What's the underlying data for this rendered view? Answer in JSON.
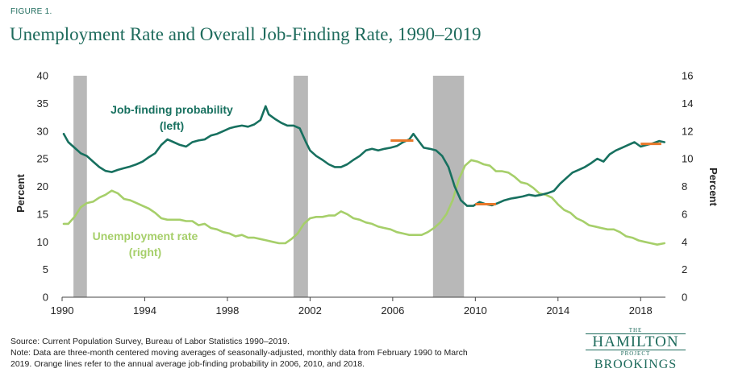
{
  "figure": {
    "label": "FIGURE 1.",
    "title": "Unemployment Rate and Overall Job-Finding Rate, 1990–2019"
  },
  "footer": {
    "source": "Source: Current Population Survey, Bureau of Labor Statistics 1990–2019.",
    "note_line1": "Note: Data are three-month centered moving averages of seasonally-adjusted, monthly data from February 1990 to March",
    "note_line2": "2019. Orange lines refer to the annual average job-finding probability in 2006, 2010, and 2018."
  },
  "logo": {
    "the": "THE",
    "hamilton": "HAMILTON",
    "project": "PROJECT",
    "brookings": "BROOKINGS"
  },
  "colors": {
    "job_finding": "#17705f",
    "unemployment": "#a6cf6a",
    "recession": "#b8b8b8",
    "orange": "#e8782a",
    "axis_text": "#222222"
  },
  "chart_data": {
    "type": "line",
    "x_range": [
      1990,
      2019.2
    ],
    "x_ticks": [
      1990,
      1994,
      1998,
      2002,
      2006,
      2010,
      2014,
      2018
    ],
    "x_tick_labels": [
      "1990",
      "1994",
      "1998",
      "2002",
      "2006",
      "2010",
      "2014",
      "2018"
    ],
    "left_axis": {
      "label": "Percent",
      "range": [
        0,
        40
      ],
      "ticks": [
        0,
        5,
        10,
        15,
        20,
        25,
        30,
        35,
        40
      ],
      "tick_labels": [
        "0",
        "5",
        "10",
        "15",
        "20",
        "25",
        "30",
        "35",
        "40"
      ]
    },
    "right_axis": {
      "label": "Percent",
      "range": [
        0,
        16
      ],
      "ticks": [
        0,
        2,
        4,
        6,
        8,
        10,
        12,
        14,
        16
      ],
      "tick_labels": [
        "0",
        "2",
        "4",
        "6",
        "8",
        "10",
        "12",
        "14",
        "16"
      ]
    },
    "recessions": [
      {
        "start": 1990.55,
        "end": 1991.2
      },
      {
        "start": 2001.2,
        "end": 2001.9
      },
      {
        "start": 2007.95,
        "end": 2009.45
      }
    ],
    "series": [
      {
        "name": "Job-finding probability",
        "annotation_line1": "Job-finding probability",
        "annotation_line2": "(left)",
        "axis": "left",
        "x": [
          1990.08,
          1990.3,
          1990.6,
          1990.9,
          1991.2,
          1991.5,
          1991.8,
          1992.1,
          1992.4,
          1992.7,
          1993.0,
          1993.3,
          1993.6,
          1993.9,
          1994.2,
          1994.5,
          1994.8,
          1995.1,
          1995.4,
          1995.7,
          1996.0,
          1996.3,
          1996.6,
          1996.9,
          1997.2,
          1997.5,
          1997.8,
          1998.1,
          1998.4,
          1998.7,
          1999.0,
          1999.3,
          1999.6,
          1999.85,
          2000.0,
          2000.3,
          2000.6,
          2000.9,
          2001.2,
          2001.5,
          2001.8,
          2002.0,
          2002.3,
          2002.6,
          2002.9,
          2003.2,
          2003.5,
          2003.8,
          2004.1,
          2004.4,
          2004.7,
          2005.0,
          2005.3,
          2005.6,
          2005.9,
          2006.2,
          2006.5,
          2006.8,
          2007.0,
          2007.2,
          2007.5,
          2007.8,
          2008.1,
          2008.4,
          2008.7,
          2009.0,
          2009.3,
          2009.6,
          2009.9,
          2010.2,
          2010.5,
          2010.8,
          2011.1,
          2011.4,
          2011.7,
          2012.0,
          2012.3,
          2012.6,
          2012.9,
          2013.2,
          2013.5,
          2013.8,
          2014.1,
          2014.4,
          2014.7,
          2015.0,
          2015.3,
          2015.6,
          2015.9,
          2016.2,
          2016.5,
          2016.8,
          2017.1,
          2017.4,
          2017.7,
          2018.0,
          2018.3,
          2018.6,
          2018.9,
          2019.15
        ],
        "values": [
          29.5,
          28,
          27,
          26,
          25.5,
          24.5,
          23.5,
          22.8,
          22.6,
          23,
          23.3,
          23.6,
          24,
          24.5,
          25.3,
          26,
          27.5,
          28.5,
          28,
          27.5,
          27.2,
          28,
          28.3,
          28.5,
          29.2,
          29.5,
          30,
          30.5,
          30.8,
          31,
          30.8,
          31.2,
          32,
          34.5,
          33,
          32.2,
          31.5,
          31,
          31,
          30.5,
          28,
          26.5,
          25.5,
          24.8,
          24,
          23.5,
          23.5,
          24,
          24.8,
          25.5,
          26.5,
          26.8,
          26.5,
          26.8,
          27,
          27.3,
          28,
          28.5,
          29.5,
          28.5,
          27,
          26.8,
          26.5,
          25.5,
          23.5,
          20,
          17.5,
          16.5,
          16.5,
          17.2,
          16.8,
          16.6,
          17,
          17.5,
          17.8,
          18,
          18.2,
          18.5,
          18.3,
          18.5,
          18.8,
          19.2,
          20.5,
          21.5,
          22.5,
          23,
          23.5,
          24.2,
          25,
          24.5,
          25.8,
          26.5,
          27,
          27.5,
          28,
          27.2,
          27.5,
          27.8,
          28.2,
          28
        ]
      },
      {
        "name": "Unemployment rate",
        "annotation_line1": "Unemployment rate",
        "annotation_line2": "(right)",
        "axis": "right",
        "x": [
          1990.08,
          1990.3,
          1990.6,
          1990.9,
          1991.2,
          1991.5,
          1991.8,
          1992.1,
          1992.4,
          1992.7,
          1993.0,
          1993.3,
          1993.6,
          1993.9,
          1994.2,
          1994.5,
          1994.8,
          1995.1,
          1995.4,
          1995.7,
          1996.0,
          1996.3,
          1996.6,
          1996.9,
          1997.2,
          1997.5,
          1997.8,
          1998.1,
          1998.4,
          1998.7,
          1999.0,
          1999.3,
          1999.6,
          1999.9,
          2000.2,
          2000.5,
          2000.8,
          2001.1,
          2001.4,
          2001.7,
          2002.0,
          2002.3,
          2002.6,
          2002.9,
          2003.2,
          2003.5,
          2003.8,
          2004.1,
          2004.4,
          2004.7,
          2005.0,
          2005.3,
          2005.6,
          2005.9,
          2006.2,
          2006.5,
          2006.8,
          2007.1,
          2007.4,
          2007.7,
          2008.0,
          2008.3,
          2008.6,
          2008.9,
          2009.2,
          2009.5,
          2009.8,
          2010.1,
          2010.4,
          2010.7,
          2011.0,
          2011.3,
          2011.6,
          2011.9,
          2012.2,
          2012.5,
          2012.8,
          2013.1,
          2013.4,
          2013.7,
          2014.0,
          2014.3,
          2014.6,
          2014.9,
          2015.2,
          2015.5,
          2015.8,
          2016.1,
          2016.4,
          2016.7,
          2017.0,
          2017.3,
          2017.6,
          2017.9,
          2018.2,
          2018.5,
          2018.8,
          2019.15
        ],
        "values": [
          5.3,
          5.3,
          5.8,
          6.5,
          6.8,
          6.9,
          7.2,
          7.4,
          7.7,
          7.5,
          7.1,
          7.0,
          6.8,
          6.6,
          6.4,
          6.1,
          5.7,
          5.6,
          5.6,
          5.6,
          5.5,
          5.5,
          5.2,
          5.3,
          5.0,
          4.9,
          4.7,
          4.6,
          4.4,
          4.5,
          4.3,
          4.3,
          4.2,
          4.1,
          4.0,
          3.9,
          3.9,
          4.2,
          4.6,
          5.3,
          5.7,
          5.8,
          5.8,
          5.9,
          5.9,
          6.2,
          6.0,
          5.7,
          5.6,
          5.4,
          5.3,
          5.1,
          5.0,
          4.9,
          4.7,
          4.6,
          4.5,
          4.5,
          4.5,
          4.7,
          5.0,
          5.4,
          6.0,
          7.0,
          8.5,
          9.5,
          9.9,
          9.8,
          9.6,
          9.5,
          9.1,
          9.1,
          9.0,
          8.7,
          8.3,
          8.2,
          7.9,
          7.5,
          7.4,
          7.2,
          6.7,
          6.3,
          6.1,
          5.7,
          5.5,
          5.2,
          5.1,
          5.0,
          4.9,
          4.9,
          4.7,
          4.4,
          4.3,
          4.1,
          4.0,
          3.9,
          3.8,
          3.9
        ]
      }
    ],
    "orange_lines": [
      {
        "year": 2006,
        "x_start": 2005.9,
        "x_end": 2007.0,
        "value": 28.3
      },
      {
        "year": 2010,
        "x_start": 2010.0,
        "x_end": 2011.0,
        "value": 16.8
      },
      {
        "year": 2018,
        "x_start": 2018.0,
        "x_end": 2019.0,
        "value": 27.7
      }
    ]
  }
}
